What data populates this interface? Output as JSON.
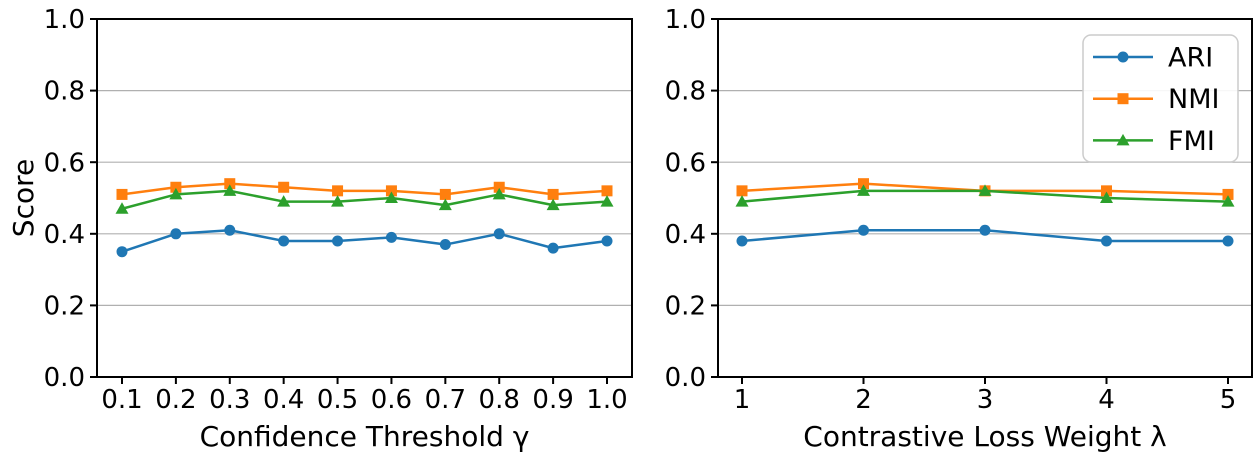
{
  "figure": {
    "background": "#ffffff"
  },
  "palette": {
    "ari": "#1f77b4",
    "nmi": "#ff7f0e",
    "fmi": "#2ca02c",
    "grid": "#b0b0b0",
    "axis": "#000000",
    "legend_border": "#cccccc",
    "legend_fill": "#ffffff"
  },
  "chart_data": [
    {
      "type": "line",
      "title": "",
      "xlabel": "Confidence Threshold γ",
      "ylabel": "Score",
      "x": [
        0.1,
        0.2,
        0.3,
        0.4,
        0.5,
        0.6,
        0.7,
        0.8,
        0.9,
        1.0
      ],
      "xtick_labels": [
        "0.1",
        "0.2",
        "0.3",
        "0.4",
        "0.5",
        "0.6",
        "0.7",
        "0.8",
        "0.9",
        "1.0"
      ],
      "ylim": [
        0.0,
        1.0
      ],
      "yticks": [
        0.0,
        0.2,
        0.4,
        0.6,
        0.8,
        1.0
      ],
      "ytick_labels": [
        "0.0",
        "0.2",
        "0.4",
        "0.6",
        "0.8",
        "1.0"
      ],
      "grid": "horizontal",
      "legend": null,
      "series": [
        {
          "name": "ARI",
          "color": "#1f77b4",
          "marker": "circle",
          "values": [
            0.35,
            0.4,
            0.41,
            0.38,
            0.38,
            0.39,
            0.37,
            0.4,
            0.36,
            0.38
          ]
        },
        {
          "name": "NMI",
          "color": "#ff7f0e",
          "marker": "square",
          "values": [
            0.51,
            0.53,
            0.54,
            0.53,
            0.52,
            0.52,
            0.51,
            0.53,
            0.51,
            0.52
          ]
        },
        {
          "name": "FMI",
          "color": "#2ca02c",
          "marker": "triangle",
          "values": [
            0.47,
            0.51,
            0.52,
            0.49,
            0.49,
            0.5,
            0.48,
            0.51,
            0.48,
            0.49
          ]
        }
      ]
    },
    {
      "type": "line",
      "title": "",
      "xlabel": "Contrastive Loss Weight λ",
      "ylabel": "",
      "x": [
        1,
        2,
        3,
        4,
        5
      ],
      "xtick_labels": [
        "1",
        "2",
        "3",
        "4",
        "5"
      ],
      "ylim": [
        0.0,
        1.0
      ],
      "yticks": [
        0.0,
        0.2,
        0.4,
        0.6,
        0.8,
        1.0
      ],
      "ytick_labels": [
        "0.0",
        "0.2",
        "0.4",
        "0.6",
        "0.8",
        "1.0"
      ],
      "grid": "horizontal",
      "legend": {
        "position": "upper right",
        "entries": [
          "ARI",
          "NMI",
          "FMI"
        ]
      },
      "series": [
        {
          "name": "ARI",
          "color": "#1f77b4",
          "marker": "circle",
          "values": [
            0.38,
            0.41,
            0.41,
            0.38,
            0.38
          ]
        },
        {
          "name": "NMI",
          "color": "#ff7f0e",
          "marker": "square",
          "values": [
            0.52,
            0.54,
            0.52,
            0.52,
            0.51
          ]
        },
        {
          "name": "FMI",
          "color": "#2ca02c",
          "marker": "triangle",
          "values": [
            0.49,
            0.52,
            0.52,
            0.5,
            0.49
          ]
        }
      ]
    }
  ]
}
